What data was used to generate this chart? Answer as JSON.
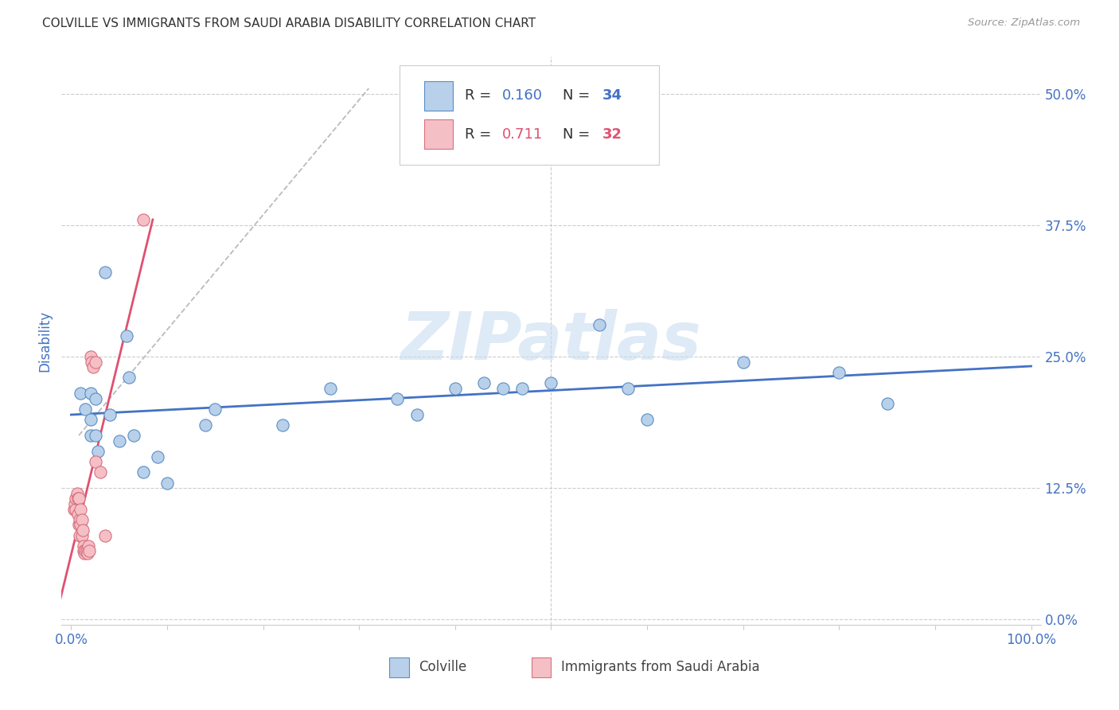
{
  "title": "COLVILLE VS IMMIGRANTS FROM SAUDI ARABIA DISABILITY CORRELATION CHART",
  "source": "Source: ZipAtlas.com",
  "ylabel": "Disability",
  "xlim": [
    -0.01,
    1.01
  ],
  "ylim": [
    -0.005,
    0.535
  ],
  "yticks": [
    0.0,
    0.125,
    0.25,
    0.375,
    0.5
  ],
  "ytick_labels": [
    "0.0%",
    "12.5%",
    "25.0%",
    "37.5%",
    "50.0%"
  ],
  "xtick_positions": [
    0.0,
    0.1,
    0.2,
    0.3,
    0.4,
    0.5,
    0.6,
    0.7,
    0.8,
    0.9,
    1.0
  ],
  "xtick_labels": [
    "0.0%",
    "",
    "",
    "",
    "",
    "",
    "",
    "",
    "",
    "",
    "100.0%"
  ],
  "legend_labels": [
    "Colville",
    "Immigrants from Saudi Arabia"
  ],
  "colville_R": 0.16,
  "colville_N": 34,
  "saudi_R": 0.711,
  "saudi_N": 32,
  "blue_fill": "#b8d0ea",
  "blue_edge": "#5b8ec4",
  "blue_line": "#4472c4",
  "pink_fill": "#f5bfc6",
  "pink_edge": "#d9707e",
  "pink_line": "#e05070",
  "ref_line_color": "#bbbbbb",
  "grid_color": "#cccccc",
  "tick_color": "#4472c4",
  "watermark_color": "#c8ddf0",
  "colville_x": [
    0.01,
    0.015,
    0.02,
    0.02,
    0.02,
    0.025,
    0.025,
    0.028,
    0.035,
    0.04,
    0.05,
    0.058,
    0.06,
    0.065,
    0.075,
    0.09,
    0.1,
    0.14,
    0.15,
    0.22,
    0.27,
    0.34,
    0.36,
    0.4,
    0.43,
    0.45,
    0.47,
    0.5,
    0.55,
    0.58,
    0.6,
    0.7,
    0.8,
    0.85
  ],
  "colville_y": [
    0.215,
    0.2,
    0.215,
    0.19,
    0.175,
    0.21,
    0.175,
    0.16,
    0.33,
    0.195,
    0.17,
    0.27,
    0.23,
    0.175,
    0.14,
    0.155,
    0.13,
    0.185,
    0.2,
    0.185,
    0.22,
    0.21,
    0.195,
    0.22,
    0.225,
    0.22,
    0.22,
    0.225,
    0.28,
    0.22,
    0.19,
    0.245,
    0.235,
    0.205
  ],
  "saudi_x": [
    0.003,
    0.004,
    0.005,
    0.005,
    0.006,
    0.007,
    0.007,
    0.008,
    0.008,
    0.009,
    0.009,
    0.01,
    0.01,
    0.011,
    0.011,
    0.012,
    0.013,
    0.013,
    0.014,
    0.015,
    0.016,
    0.017,
    0.018,
    0.019,
    0.02,
    0.021,
    0.023,
    0.025,
    0.025,
    0.03,
    0.035,
    0.075
  ],
  "saudi_y": [
    0.105,
    0.11,
    0.105,
    0.115,
    0.12,
    0.115,
    0.1,
    0.115,
    0.09,
    0.08,
    0.095,
    0.09,
    0.105,
    0.08,
    0.095,
    0.085,
    0.07,
    0.065,
    0.063,
    0.065,
    0.065,
    0.063,
    0.07,
    0.065,
    0.25,
    0.245,
    0.24,
    0.245,
    0.15,
    0.14,
    0.08,
    0.38
  ]
}
